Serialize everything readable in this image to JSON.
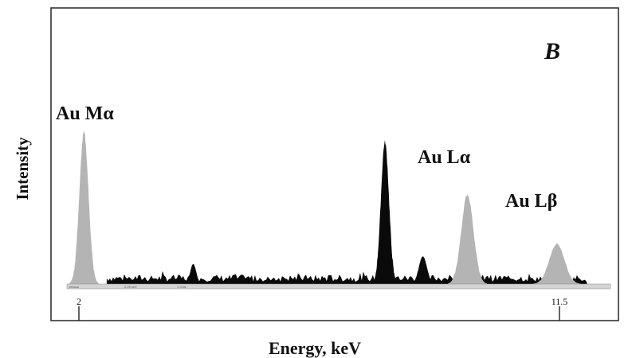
{
  "chart_data": {
    "type": "area",
    "panel_label": "B",
    "xlabel": "Energy, keV",
    "ylabel": "Intensity",
    "x_ticks": [
      {
        "value": 2,
        "label": "2"
      },
      {
        "value": 11.5,
        "label": "11.5"
      }
    ],
    "xlim": [
      1,
      12.0
    ],
    "ylim": [
      0,
      1
    ],
    "colors": {
      "gray": "#b4b4b4",
      "black": "#0a0a0a"
    },
    "annotations": [
      {
        "text": "Au Mα",
        "x": 2.0
      },
      {
        "text": "Au Lα",
        "x": 9.7
      },
      {
        "text": "Au Lβ",
        "x": 11.4
      }
    ],
    "peaks": [
      {
        "name": "Au Mα",
        "center": 2.1,
        "height": 0.98,
        "width": 0.09,
        "color": "gray"
      },
      {
        "name": "",
        "center": 4.26,
        "height": 0.13,
        "width": 0.06,
        "color": "black"
      },
      {
        "name": "",
        "center": 8.05,
        "height": 0.92,
        "width": 0.08,
        "color": "black"
      },
      {
        "name": "",
        "center": 8.8,
        "height": 0.18,
        "width": 0.08,
        "color": "black"
      },
      {
        "name": "Au Lα",
        "center": 9.68,
        "height": 0.58,
        "width": 0.12,
        "color": "gray"
      },
      {
        "name": "Au Lβ",
        "center": 11.45,
        "height": 0.26,
        "width": 0.15,
        "color": "gray"
      }
    ],
    "scale_bar_text": [
      "Vertical",
      "2.29 keV",
      "1 Cnts"
    ],
    "grid": false,
    "legend": "none"
  }
}
